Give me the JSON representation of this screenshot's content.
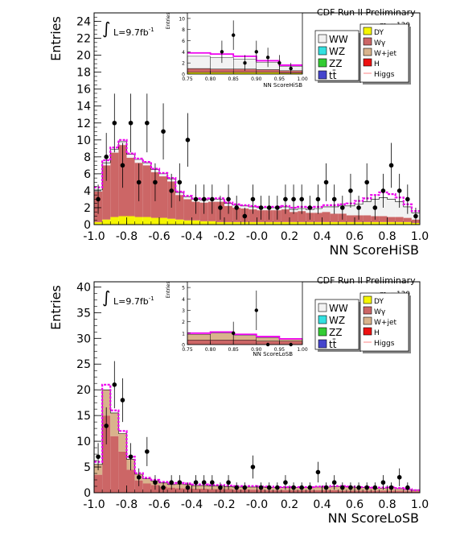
{
  "panels": [
    {
      "id": "hi",
      "ylabel": "Entries",
      "xlabel": "NN ScoreHiSB",
      "experiment": "CDF Run II Preliminary",
      "lumi": "L=9.7fb",
      "lumi_sup": "-1",
      "mass_label": "m",
      "mass_sub": "H",
      "mass_value": "=130",
      "yticks": [
        "0",
        "2",
        "4",
        "6",
        "8",
        "10",
        "12",
        "14",
        "16",
        "18",
        "20",
        "22",
        "24"
      ],
      "xticks": [
        "-1.0",
        "-0.8",
        "-0.6",
        "-0.4",
        "-0.2",
        "-0.0",
        "0.2",
        "0.4",
        "0.6",
        "0.8",
        "1.0"
      ],
      "inset": {
        "ylabel": "Entries",
        "xlabel": "NN ScoreHiSB",
        "yticks": [
          "0",
          "2",
          "4",
          "6",
          "8",
          "10"
        ],
        "xticks": [
          "0.75",
          "0.80",
          "0.85",
          "0.90",
          "0.95",
          "1.00"
        ]
      }
    },
    {
      "id": "lo",
      "ylabel": "Entries",
      "xlabel": "NN ScoreLoSB",
      "experiment": "CDF Run II Preliminary",
      "lumi": "L=9.7fb",
      "lumi_sup": "-1",
      "mass_label": "m",
      "mass_sub": "H",
      "mass_value": "=130",
      "yticks": [
        "0",
        "5",
        "10",
        "15",
        "20",
        "25",
        "30",
        "35",
        "40"
      ],
      "xticks": [
        "-1.0",
        "-0.8",
        "-0.6",
        "-0.4",
        "-0.2",
        "-0.0",
        "0.2",
        "0.4",
        "0.6",
        "0.8",
        "1.0"
      ],
      "inset": {
        "ylabel": "Entries",
        "xlabel": "NN ScoreLoSB",
        "yticks": [
          "0",
          "1",
          "2",
          "3",
          "4",
          "5"
        ],
        "xticks": [
          "0.75",
          "0.80",
          "0.85",
          "0.90",
          "0.95",
          "1.00"
        ]
      }
    }
  ],
  "legend": {
    "left": [
      {
        "label": "WW",
        "color": "#f2f2f2"
      },
      {
        "label": "WZ",
        "color": "#33e0e0"
      },
      {
        "label": "ZZ",
        "color": "#33cc33"
      },
      {
        "label": "tt̄",
        "color": "#4444cc"
      }
    ],
    "right": [
      {
        "label": "DY",
        "color": "#f5f500"
      },
      {
        "label": "Wγ",
        "color": "#cc6666"
      },
      {
        "label": "W+jet",
        "color": "#d9b38c"
      },
      {
        "label": "H",
        "color": "#ee1111"
      },
      {
        "label": "Higgs",
        "color": "#ff9999"
      }
    ]
  },
  "colors": {
    "ww": "#f2f2f2",
    "wgamma": "#cc6666",
    "wjet": "#d9b38c",
    "dy": "#f5f500",
    "signal": "#ee00ee",
    "data": "#000000"
  },
  "chart_data": [
    {
      "type": "bar",
      "title": "",
      "xlabel": "NN ScoreHiSB",
      "ylabel": "Entries",
      "xlim": [
        -1.0,
        1.0
      ],
      "ylim": [
        0,
        25
      ],
      "bin_width": 0.05,
      "x": [
        -0.975,
        -0.925,
        -0.875,
        -0.825,
        -0.775,
        -0.725,
        -0.675,
        -0.625,
        -0.575,
        -0.525,
        -0.475,
        -0.425,
        -0.375,
        -0.325,
        -0.275,
        -0.225,
        -0.175,
        -0.125,
        -0.075,
        -0.025,
        0.025,
        0.075,
        0.125,
        0.175,
        0.225,
        0.275,
        0.325,
        0.375,
        0.425,
        0.475,
        0.525,
        0.575,
        0.625,
        0.675,
        0.725,
        0.775,
        0.825,
        0.875,
        0.925,
        0.975
      ],
      "series": [
        {
          "name": "DY",
          "values": [
            0.3,
            0.6,
            0.9,
            1.0,
            1.0,
            0.9,
            0.9,
            0.8,
            0.8,
            0.7,
            0.6,
            0.5,
            0.5,
            0.4,
            0.4,
            0.3,
            0.3,
            0.3,
            0.3,
            0.3,
            0.3,
            0.3,
            0.3,
            0.3,
            0.3,
            0.3,
            0.3,
            0.3,
            0.3,
            0.3,
            0.3,
            0.3,
            0.3,
            0.3,
            0.3,
            0.3,
            0.3,
            0.3,
            0.3,
            0.2
          ]
        },
        {
          "name": "Wγ",
          "values": [
            3.6,
            6.4,
            7.6,
            8.4,
            6.9,
            6.4,
            6.1,
            5.4,
            4.9,
            4.4,
            2.9,
            2.5,
            2.2,
            2.2,
            2.3,
            2.4,
            1.9,
            1.7,
            1.6,
            1.5,
            1.4,
            1.4,
            1.4,
            1.5,
            1.2,
            1.3,
            1.1,
            1.1,
            1.2,
            1.0,
            1.0,
            0.8,
            0.8,
            0.8,
            0.7,
            0.7,
            0.6,
            0.6,
            0.5,
            0.4
          ]
        },
        {
          "name": "WW",
          "values": [
            0.2,
            0.3,
            0.4,
            0.4,
            0.4,
            0.4,
            0.3,
            0.3,
            0.3,
            0.3,
            0.3,
            0.3,
            0.3,
            0.3,
            0.3,
            0.3,
            0.3,
            0.3,
            0.3,
            0.3,
            0.3,
            0.3,
            0.3,
            0.3,
            0.3,
            0.3,
            0.4,
            0.5,
            0.6,
            0.8,
            0.9,
            1.1,
            1.3,
            1.6,
            2.0,
            2.2,
            2.1,
            1.8,
            1.3,
            0.8
          ]
        },
        {
          "name": "Higgs",
          "values": [
            4.4,
            7.6,
            9.1,
            10.0,
            8.4,
            7.8,
            7.4,
            6.6,
            6.1,
            5.5,
            3.9,
            3.4,
            3.1,
            3.0,
            3.1,
            3.1,
            2.6,
            2.4,
            2.3,
            2.2,
            2.1,
            2.1,
            2.1,
            2.2,
            2.0,
            2.1,
            2.0,
            2.1,
            2.3,
            2.3,
            2.4,
            2.5,
            2.8,
            3.1,
            3.5,
            3.8,
            3.6,
            3.2,
            2.4,
            1.6
          ]
        }
      ],
      "data": [
        {
          "x": -0.975,
          "y": 3
        },
        {
          "x": -0.925,
          "y": 8
        },
        {
          "x": -0.875,
          "y": 12
        },
        {
          "x": -0.825,
          "y": 7
        },
        {
          "x": -0.775,
          "y": 12
        },
        {
          "x": -0.725,
          "y": 5
        },
        {
          "x": -0.675,
          "y": 12
        },
        {
          "x": -0.625,
          "y": 5
        },
        {
          "x": -0.575,
          "y": 11
        },
        {
          "x": -0.525,
          "y": 4
        },
        {
          "x": -0.475,
          "y": 5
        },
        {
          "x": -0.425,
          "y": 10
        },
        {
          "x": -0.375,
          "y": 3
        },
        {
          "x": -0.325,
          "y": 3
        },
        {
          "x": -0.275,
          "y": 3
        },
        {
          "x": -0.225,
          "y": 2
        },
        {
          "x": -0.175,
          "y": 3
        },
        {
          "x": -0.125,
          "y": 2
        },
        {
          "x": -0.075,
          "y": 1
        },
        {
          "x": -0.025,
          "y": 3
        },
        {
          "x": 0.025,
          "y": 2
        },
        {
          "x": 0.075,
          "y": 2
        },
        {
          "x": 0.125,
          "y": 2
        },
        {
          "x": 0.175,
          "y": 3
        },
        {
          "x": 0.225,
          "y": 3
        },
        {
          "x": 0.275,
          "y": 3
        },
        {
          "x": 0.325,
          "y": 2
        },
        {
          "x": 0.375,
          "y": 3
        },
        {
          "x": 0.425,
          "y": 5
        },
        {
          "x": 0.475,
          "y": 3
        },
        {
          "x": 0.525,
          "y": 2
        },
        {
          "x": 0.575,
          "y": 4
        },
        {
          "x": 0.625,
          "y": 2
        },
        {
          "x": 0.675,
          "y": 5
        },
        {
          "x": 0.725,
          "y": 2
        },
        {
          "x": 0.775,
          "y": 4
        },
        {
          "x": 0.825,
          "y": 7
        },
        {
          "x": 0.875,
          "y": 4
        },
        {
          "x": 0.925,
          "y": 3
        },
        {
          "x": 0.975,
          "y": 1
        }
      ],
      "inset": {
        "xlim": [
          0.75,
          1.0
        ],
        "ylim": [
          0,
          11
        ],
        "data": [
          {
            "x": 0.825,
            "y": 4
          },
          {
            "x": 0.85,
            "y": 7
          },
          {
            "x": 0.875,
            "y": 2
          },
          {
            "x": 0.9,
            "y": 4
          },
          {
            "x": 0.925,
            "y": 3
          },
          {
            "x": 0.95,
            "y": 2
          },
          {
            "x": 0.975,
            "y": 1
          }
        ]
      }
    },
    {
      "type": "bar",
      "title": "",
      "xlabel": "NN ScoreLoSB",
      "ylabel": "Entries",
      "xlim": [
        -1.0,
        1.0
      ],
      "ylim": [
        0,
        41
      ],
      "bin_width": 0.05,
      "x": [
        -0.975,
        -0.925,
        -0.875,
        -0.825,
        -0.775,
        -0.725,
        -0.675,
        -0.625,
        -0.575,
        -0.525,
        -0.475,
        -0.425,
        -0.375,
        -0.325,
        -0.275,
        -0.225,
        -0.175,
        -0.125,
        -0.075,
        -0.025,
        0.025,
        0.075,
        0.125,
        0.175,
        0.225,
        0.275,
        0.325,
        0.375,
        0.425,
        0.475,
        0.525,
        0.575,
        0.625,
        0.675,
        0.725,
        0.775,
        0.825,
        0.875,
        0.925,
        0.975
      ],
      "series": [
        {
          "name": "Wγ",
          "values": [
            3.5,
            15.0,
            11.0,
            8.0,
            4.5,
            2.4,
            1.8,
            1.5,
            1.2,
            1.0,
            0.9,
            0.9,
            0.8,
            0.8,
            0.7,
            0.7,
            0.7,
            0.6,
            0.6,
            0.6,
            0.6,
            0.5,
            0.5,
            0.5,
            0.5,
            0.5,
            0.5,
            0.5,
            0.5,
            0.5,
            0.4,
            0.4,
            0.4,
            0.4,
            0.4,
            0.4,
            0.4,
            0.4,
            0.3,
            0.3
          ]
        },
        {
          "name": "W+jet",
          "values": [
            2.0,
            5.0,
            4.5,
            3.5,
            2.0,
            1.2,
            0.9,
            0.8,
            0.7,
            0.6,
            0.8,
            0.7,
            0.6,
            0.6,
            0.6,
            0.6,
            0.5,
            0.5,
            0.5,
            0.5,
            0.5,
            0.5,
            0.5,
            0.5,
            0.5,
            0.5,
            0.5,
            0.6,
            0.6,
            0.7,
            0.8,
            0.7,
            0.6,
            0.6,
            0.5,
            0.5,
            0.6,
            0.4,
            0.3,
            0.2
          ]
        },
        {
          "name": "Higgs",
          "values": [
            6.0,
            21.0,
            16.0,
            12.0,
            7.0,
            3.8,
            2.9,
            2.5,
            2.1,
            1.8,
            1.9,
            1.8,
            1.6,
            1.6,
            1.5,
            1.5,
            1.4,
            1.3,
            1.3,
            1.3,
            1.2,
            1.2,
            1.1,
            1.1,
            1.1,
            1.1,
            1.1,
            1.2,
            1.2,
            1.3,
            1.3,
            1.2,
            1.1,
            1.1,
            1.0,
            1.0,
            1.1,
            0.9,
            0.7,
            0.5
          ]
        }
      ],
      "data": [
        {
          "x": -0.975,
          "y": 7
        },
        {
          "x": -0.925,
          "y": 13
        },
        {
          "x": -0.875,
          "y": 21
        },
        {
          "x": -0.825,
          "y": 18
        },
        {
          "x": -0.775,
          "y": 7
        },
        {
          "x": -0.725,
          "y": 3
        },
        {
          "x": -0.675,
          "y": 8
        },
        {
          "x": -0.625,
          "y": 2
        },
        {
          "x": -0.575,
          "y": 1
        },
        {
          "x": -0.525,
          "y": 2
        },
        {
          "x": -0.475,
          "y": 2
        },
        {
          "x": -0.425,
          "y": 1
        },
        {
          "x": -0.375,
          "y": 2
        },
        {
          "x": -0.325,
          "y": 2
        },
        {
          "x": -0.275,
          "y": 2
        },
        {
          "x": -0.225,
          "y": 1
        },
        {
          "x": -0.175,
          "y": 2
        },
        {
          "x": -0.125,
          "y": 1
        },
        {
          "x": -0.075,
          "y": 1
        },
        {
          "x": -0.025,
          "y": 5
        },
        {
          "x": 0.025,
          "y": 1
        },
        {
          "x": 0.075,
          "y": 1
        },
        {
          "x": 0.125,
          "y": 1
        },
        {
          "x": 0.175,
          "y": 2
        },
        {
          "x": 0.225,
          "y": 1
        },
        {
          "x": 0.275,
          "y": 1
        },
        {
          "x": 0.325,
          "y": 1
        },
        {
          "x": 0.375,
          "y": 4
        },
        {
          "x": 0.425,
          "y": 1
        },
        {
          "x": 0.475,
          "y": 2
        },
        {
          "x": 0.525,
          "y": 1
        },
        {
          "x": 0.575,
          "y": 1
        },
        {
          "x": 0.625,
          "y": 1
        },
        {
          "x": 0.675,
          "y": 1
        },
        {
          "x": 0.725,
          "y": 1
        },
        {
          "x": 0.775,
          "y": 2
        },
        {
          "x": 0.825,
          "y": 1
        },
        {
          "x": 0.875,
          "y": 3
        },
        {
          "x": 0.925,
          "y": 1
        },
        {
          "x": 0.975,
          "y": 0
        }
      ],
      "inset": {
        "xlim": [
          0.75,
          1.0
        ],
        "ylim": [
          0,
          5.5
        ],
        "data": [
          {
            "x": 0.85,
            "y": 1
          },
          {
            "x": 0.9,
            "y": 3
          },
          {
            "x": 0.925,
            "y": 0
          },
          {
            "x": 0.975,
            "y": 0
          }
        ]
      }
    }
  ]
}
